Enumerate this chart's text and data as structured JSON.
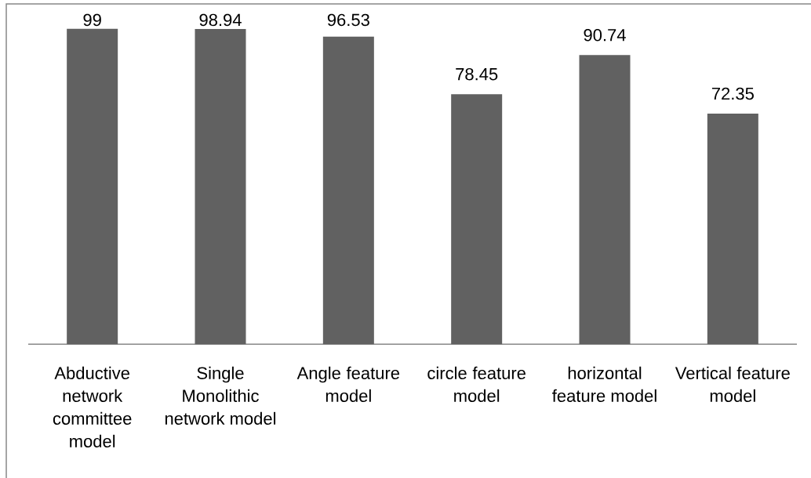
{
  "chart_data": {
    "type": "bar",
    "categories": [
      "Abductive network committee model",
      "Single Monolithic network model",
      "Angle feature model",
      "circle feature model",
      "horizontal feature model",
      "Vertical feature model"
    ],
    "values": [
      99,
      98.94,
      96.53,
      78.45,
      90.74,
      72.35
    ],
    "color": "#616161",
    "data_labels": true,
    "tick_labels": "x"
  }
}
